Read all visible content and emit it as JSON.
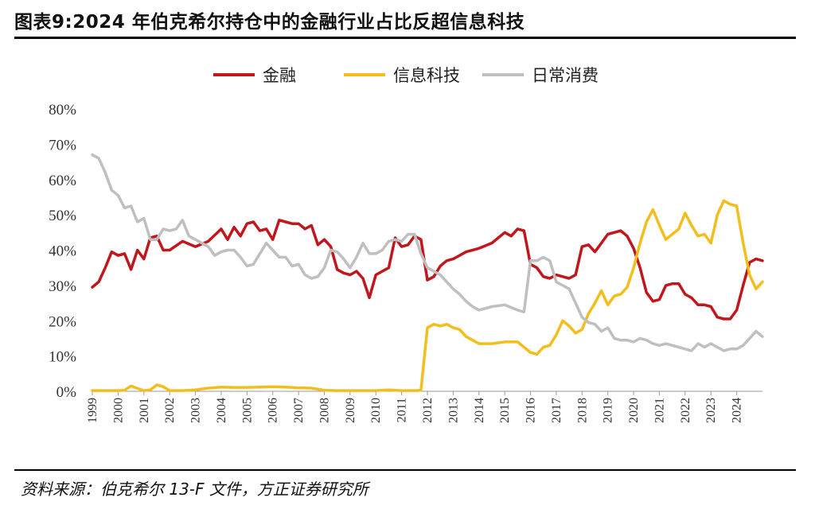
{
  "title": "图表9:2024 年伯克希尔持仓中的金融行业占比反超信息科技",
  "source": "资料来源：伯克希尔 13-F 文件，方正证券研究所",
  "chart_data": {
    "type": "line",
    "ylim": [
      0,
      80
    ],
    "y_ticks": [
      "0%",
      "10%",
      "20%",
      "30%",
      "40%",
      "50%",
      "60%",
      "70%",
      "80%"
    ],
    "x_range": [
      1999,
      2025
    ],
    "x_ticks": [
      "1999",
      "2000",
      "2001",
      "2002",
      "2003",
      "2004",
      "2005",
      "2006",
      "2007",
      "2008",
      "2009",
      "2010",
      "2011",
      "2012",
      "2013",
      "2014",
      "2015",
      "2016",
      "2017",
      "2018",
      "2019",
      "2020",
      "2021",
      "2022",
      "2023",
      "2024"
    ],
    "legend": [
      "金融",
      "信息科技",
      "日常消费"
    ],
    "series": [
      {
        "name": "金融",
        "color": "#c0171c",
        "points": [
          [
            1999.0,
            29.5
          ],
          [
            1999.25,
            31
          ],
          [
            1999.5,
            35
          ],
          [
            1999.75,
            39.5
          ],
          [
            2000.0,
            38.5
          ],
          [
            2000.25,
            39
          ],
          [
            2000.5,
            34.5
          ],
          [
            2000.75,
            40
          ],
          [
            2001.0,
            37.5
          ],
          [
            2001.25,
            43.5
          ],
          [
            2001.5,
            44
          ],
          [
            2001.75,
            40
          ],
          [
            2002.0,
            40
          ],
          [
            2002.5,
            42.5
          ],
          [
            2003.0,
            41
          ],
          [
            2003.5,
            42.5
          ],
          [
            2004.0,
            46
          ],
          [
            2004.25,
            43
          ],
          [
            2004.5,
            46.5
          ],
          [
            2004.75,
            44
          ],
          [
            2005.0,
            47.5
          ],
          [
            2005.25,
            48
          ],
          [
            2005.5,
            45.5
          ],
          [
            2005.75,
            46
          ],
          [
            2006.0,
            43
          ],
          [
            2006.25,
            48.5
          ],
          [
            2006.5,
            48
          ],
          [
            2006.75,
            47.5
          ],
          [
            2007.0,
            47.5
          ],
          [
            2007.25,
            46
          ],
          [
            2007.5,
            47
          ],
          [
            2007.75,
            41.5
          ],
          [
            2008.0,
            43
          ],
          [
            2008.25,
            41
          ],
          [
            2008.5,
            34.5
          ],
          [
            2008.75,
            33.5
          ],
          [
            2009.0,
            33
          ],
          [
            2009.25,
            34
          ],
          [
            2009.5,
            32
          ],
          [
            2009.75,
            26.5
          ],
          [
            2010.0,
            33
          ],
          [
            2010.25,
            34
          ],
          [
            2010.5,
            35
          ],
          [
            2010.75,
            43.5
          ],
          [
            2011.0,
            41
          ],
          [
            2011.25,
            41.5
          ],
          [
            2011.5,
            44
          ],
          [
            2011.75,
            43
          ],
          [
            2012.0,
            31.5
          ],
          [
            2012.25,
            32.5
          ],
          [
            2012.5,
            35.5
          ],
          [
            2012.75,
            37
          ],
          [
            2013.0,
            37.5
          ],
          [
            2013.5,
            39.5
          ],
          [
            2014.0,
            40.5
          ],
          [
            2014.5,
            42
          ],
          [
            2015.0,
            45
          ],
          [
            2015.25,
            44
          ],
          [
            2015.5,
            46
          ],
          [
            2015.75,
            45.5
          ],
          [
            2016.0,
            36
          ],
          [
            2016.25,
            35
          ],
          [
            2016.5,
            32.5
          ],
          [
            2016.75,
            32
          ],
          [
            2017.0,
            33
          ],
          [
            2017.25,
            32.5
          ],
          [
            2017.5,
            32
          ],
          [
            2017.75,
            33
          ],
          [
            2018.0,
            41
          ],
          [
            2018.25,
            41.5
          ],
          [
            2018.5,
            39.5
          ],
          [
            2018.75,
            42
          ],
          [
            2019.0,
            44.5
          ],
          [
            2019.25,
            45
          ],
          [
            2019.5,
            45.5
          ],
          [
            2019.75,
            44
          ],
          [
            2020.0,
            40.5
          ],
          [
            2020.25,
            35
          ],
          [
            2020.5,
            28
          ],
          [
            2020.75,
            25.5
          ],
          [
            2021.0,
            26
          ],
          [
            2021.25,
            30
          ],
          [
            2021.5,
            30.5
          ],
          [
            2021.75,
            30.5
          ],
          [
            2022.0,
            27.5
          ],
          [
            2022.25,
            26.5
          ],
          [
            2022.5,
            24.5
          ],
          [
            2022.75,
            24.5
          ],
          [
            2023.0,
            24
          ],
          [
            2023.25,
            21
          ],
          [
            2023.5,
            20.5
          ],
          [
            2023.75,
            20.5
          ],
          [
            2024.0,
            23
          ],
          [
            2024.25,
            30
          ],
          [
            2024.5,
            36.5
          ],
          [
            2024.75,
            37.5
          ],
          [
            2025.0,
            37
          ]
        ]
      },
      {
        "name": "信息科技",
        "color": "#f3be1b",
        "points": [
          [
            1999.0,
            0.2
          ],
          [
            1999.5,
            0.2
          ],
          [
            2000.0,
            0.2
          ],
          [
            2000.25,
            0.3
          ],
          [
            2000.5,
            1.5
          ],
          [
            2000.75,
            0.8
          ],
          [
            2001.0,
            0.2
          ],
          [
            2001.25,
            0.4
          ],
          [
            2001.5,
            1.8
          ],
          [
            2001.75,
            1.3
          ],
          [
            2002.0,
            0.2
          ],
          [
            2002.5,
            0.2
          ],
          [
            2003.0,
            0.4
          ],
          [
            2003.5,
            0.9
          ],
          [
            2004.0,
            1.2
          ],
          [
            2004.5,
            1.1
          ],
          [
            2005.0,
            1.1
          ],
          [
            2005.5,
            1.2
          ],
          [
            2006.0,
            1.3
          ],
          [
            2006.5,
            1.2
          ],
          [
            2007.0,
            1.0
          ],
          [
            2007.5,
            0.9
          ],
          [
            2008.0,
            0.3
          ],
          [
            2008.5,
            0.2
          ],
          [
            2009.0,
            0.2
          ],
          [
            2009.5,
            0.2
          ],
          [
            2010.0,
            0.2
          ],
          [
            2010.5,
            0.4
          ],
          [
            2011.0,
            0.2
          ],
          [
            2011.5,
            0.2
          ],
          [
            2011.75,
            0.3
          ],
          [
            2012.0,
            18
          ],
          [
            2012.25,
            19
          ],
          [
            2012.5,
            18.5
          ],
          [
            2012.75,
            19
          ],
          [
            2013.0,
            18
          ],
          [
            2013.25,
            17.5
          ],
          [
            2013.5,
            15.5
          ],
          [
            2013.75,
            14.5
          ],
          [
            2014.0,
            13.5
          ],
          [
            2014.5,
            13.5
          ],
          [
            2015.0,
            14
          ],
          [
            2015.5,
            14
          ],
          [
            2016.0,
            11
          ],
          [
            2016.25,
            10.5
          ],
          [
            2016.5,
            12.5
          ],
          [
            2016.75,
            13
          ],
          [
            2017.0,
            16
          ],
          [
            2017.25,
            20
          ],
          [
            2017.5,
            18.5
          ],
          [
            2017.75,
            16.5
          ],
          [
            2018.0,
            17.5
          ],
          [
            2018.25,
            22
          ],
          [
            2018.5,
            25
          ],
          [
            2018.75,
            28.5
          ],
          [
            2019.0,
            24.5
          ],
          [
            2019.25,
            27
          ],
          [
            2019.5,
            27.5
          ],
          [
            2019.75,
            29.5
          ],
          [
            2020.0,
            35
          ],
          [
            2020.25,
            42
          ],
          [
            2020.5,
            48
          ],
          [
            2020.75,
            51.5
          ],
          [
            2021.0,
            47
          ],
          [
            2021.25,
            43
          ],
          [
            2021.5,
            44.5
          ],
          [
            2021.75,
            46
          ],
          [
            2022.0,
            50.5
          ],
          [
            2022.25,
            47
          ],
          [
            2022.5,
            44
          ],
          [
            2022.75,
            44.5
          ],
          [
            2023.0,
            42
          ],
          [
            2023.25,
            50
          ],
          [
            2023.5,
            54
          ],
          [
            2023.75,
            53
          ],
          [
            2024.0,
            52.5
          ],
          [
            2024.25,
            42
          ],
          [
            2024.5,
            33
          ],
          [
            2024.75,
            29
          ],
          [
            2025.0,
            31
          ]
        ]
      },
      {
        "name": "日常消费",
        "color": "#bfbfbf",
        "points": [
          [
            1999.0,
            67
          ],
          [
            1999.25,
            66
          ],
          [
            1999.5,
            62
          ],
          [
            1999.75,
            57
          ],
          [
            2000.0,
            55.5
          ],
          [
            2000.25,
            52
          ],
          [
            2000.5,
            52.5
          ],
          [
            2000.75,
            48
          ],
          [
            2001.0,
            49
          ],
          [
            2001.25,
            43
          ],
          [
            2001.5,
            43
          ],
          [
            2001.75,
            46
          ],
          [
            2002.0,
            45.5
          ],
          [
            2002.25,
            46
          ],
          [
            2002.5,
            48.5
          ],
          [
            2002.75,
            44
          ],
          [
            2003.0,
            43
          ],
          [
            2003.25,
            42
          ],
          [
            2003.5,
            41
          ],
          [
            2003.75,
            38.5
          ],
          [
            2004.0,
            39.5
          ],
          [
            2004.25,
            40
          ],
          [
            2004.5,
            40
          ],
          [
            2004.75,
            38
          ],
          [
            2005.0,
            35.5
          ],
          [
            2005.25,
            36
          ],
          [
            2005.5,
            39
          ],
          [
            2005.75,
            42
          ],
          [
            2006.0,
            40
          ],
          [
            2006.25,
            38
          ],
          [
            2006.5,
            38
          ],
          [
            2006.75,
            35.5
          ],
          [
            2007.0,
            36
          ],
          [
            2007.25,
            33
          ],
          [
            2007.5,
            32
          ],
          [
            2007.75,
            32.5
          ],
          [
            2008.0,
            35
          ],
          [
            2008.25,
            40
          ],
          [
            2008.5,
            39.5
          ],
          [
            2008.75,
            37.5
          ],
          [
            2009.0,
            35
          ],
          [
            2009.25,
            38
          ],
          [
            2009.5,
            42
          ],
          [
            2009.75,
            39
          ],
          [
            2010.0,
            39
          ],
          [
            2010.25,
            40
          ],
          [
            2010.5,
            42.5
          ],
          [
            2010.75,
            43
          ],
          [
            2011.0,
            42.5
          ],
          [
            2011.25,
            44.5
          ],
          [
            2011.5,
            44.5
          ],
          [
            2011.75,
            39
          ],
          [
            2012.0,
            35
          ],
          [
            2012.25,
            34
          ],
          [
            2012.5,
            33
          ],
          [
            2012.75,
            31
          ],
          [
            2013.0,
            29
          ],
          [
            2013.25,
            27.5
          ],
          [
            2013.5,
            25.5
          ],
          [
            2013.75,
            24
          ],
          [
            2014.0,
            23
          ],
          [
            2014.5,
            24
          ],
          [
            2015.0,
            24.5
          ],
          [
            2015.5,
            23
          ],
          [
            2015.75,
            22.5
          ],
          [
            2016.0,
            37
          ],
          [
            2016.25,
            37
          ],
          [
            2016.5,
            38
          ],
          [
            2016.75,
            37
          ],
          [
            2017.0,
            31
          ],
          [
            2017.25,
            30
          ],
          [
            2017.5,
            29
          ],
          [
            2017.75,
            25
          ],
          [
            2018.0,
            21
          ],
          [
            2018.25,
            19.5
          ],
          [
            2018.5,
            19
          ],
          [
            2018.75,
            17
          ],
          [
            2019.0,
            18
          ],
          [
            2019.25,
            15
          ],
          [
            2019.5,
            14.5
          ],
          [
            2019.75,
            14.5
          ],
          [
            2020.0,
            14
          ],
          [
            2020.25,
            15
          ],
          [
            2020.5,
            14.5
          ],
          [
            2020.75,
            13.5
          ],
          [
            2021.0,
            13
          ],
          [
            2021.25,
            13.5
          ],
          [
            2021.5,
            13
          ],
          [
            2021.75,
            12.5
          ],
          [
            2022.0,
            12
          ],
          [
            2022.25,
            11.5
          ],
          [
            2022.5,
            13.5
          ],
          [
            2022.75,
            12.5
          ],
          [
            2023.0,
            13.5
          ],
          [
            2023.25,
            12.5
          ],
          [
            2023.5,
            11.5
          ],
          [
            2023.75,
            12
          ],
          [
            2024.0,
            12
          ],
          [
            2024.25,
            13
          ],
          [
            2024.5,
            15
          ],
          [
            2024.75,
            17
          ],
          [
            2025.0,
            15.5
          ]
        ]
      }
    ]
  }
}
